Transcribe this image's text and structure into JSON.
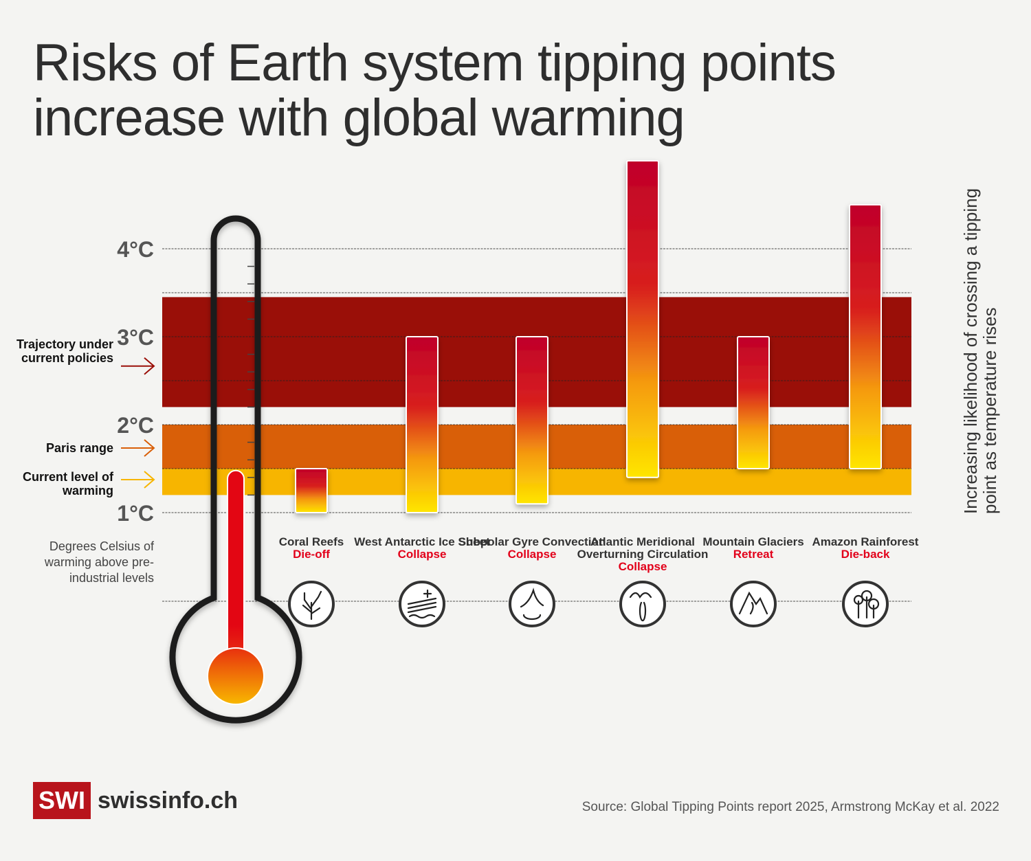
{
  "title_lines": [
    "Risks of Earth system tipping points",
    "increase with global warming"
  ],
  "side_labels": {
    "trajectory": "Trajectory under current policies",
    "paris": "Paris range",
    "current": "Current level of warming"
  },
  "y_axis_label": "Degrees Celsius of warming above pre-industrial levels",
  "right_annotation": [
    "Increasing likelihood of crossing a tipping",
    "point as temperature rises"
  ],
  "source": "Source: Global Tipping Points report 2025, Armstrong McKay et al. 2022",
  "logo": {
    "mark": "SWI",
    "name": "swissinfo.ch"
  },
  "colors": {
    "trajectory": "#9a0f08",
    "paris": "#d95f08",
    "current": "#f7b500",
    "bar_top": "#c0002a",
    "bar_bottom": "#ffe600",
    "outcome": "#e2001a",
    "thermometer_fill": "#e30613"
  },
  "chart_data": {
    "type": "bar",
    "subtype": "floating-range",
    "ylabel": "Degrees Celsius of warming above pre-industrial levels",
    "ytick_labels": [
      "1°C",
      "2°C",
      "3°C",
      "4°C"
    ],
    "yticks": [
      1,
      2,
      3,
      4
    ],
    "ylim": [
      1,
      5
    ],
    "grid": true,
    "bands": [
      {
        "name": "Trajectory under current policies",
        "low": 2.2,
        "high": 3.45
      },
      {
        "name": "Paris range",
        "low": 1.5,
        "high": 2.0
      },
      {
        "name": "Current level of warming",
        "low": 1.2,
        "high": 1.5
      }
    ],
    "thermometer_level": 1.4,
    "categories": [
      {
        "system": "Coral Reefs",
        "outcome": "Die-off",
        "icon": "coral-icon",
        "low": 1.0,
        "high": 1.5
      },
      {
        "system": "West Antarctic Ice Sheet",
        "outcome": "Collapse",
        "icon": "ice-sheet-icon",
        "low": 1.0,
        "high": 3.0
      },
      {
        "system": "Subpolar Gyre Convection",
        "outcome": "Collapse",
        "icon": "ocean-gyre-icon",
        "low": 1.1,
        "high": 3.0
      },
      {
        "system": "Atlantic Meridional Overturning Circulation",
        "outcome": "Collapse",
        "icon": "ocean-circulation-icon",
        "low": 1.4,
        "high": 5.0
      },
      {
        "system": "Mountain Glaciers",
        "outcome": "Retreat",
        "icon": "mountain-icon",
        "low": 1.5,
        "high": 3.0
      },
      {
        "system": "Amazon Rainforest",
        "outcome": "Die-back",
        "icon": "forest-icon",
        "low": 1.5,
        "high": 4.5
      }
    ]
  }
}
